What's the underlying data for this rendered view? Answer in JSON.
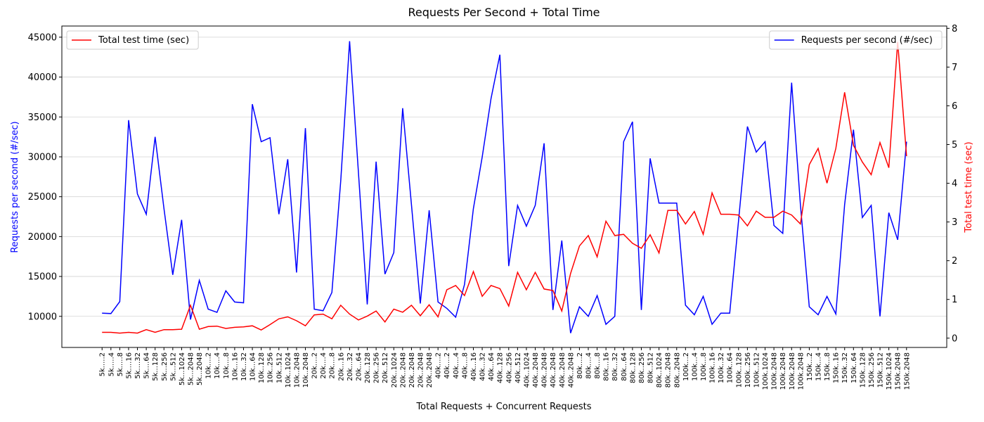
{
  "chart_data": {
    "type": "line",
    "title": "Requests Per Second + Total Time",
    "xlabel": "Total Requests + Concurrent Requests",
    "ylabel": "Requests per second (#/sec)",
    "y2label": "Total test time (sec)",
    "ylabel_color": "#0000ff",
    "y2label_color": "#ff0000",
    "categories": [
      "5k.....2",
      "5k.....4",
      "5k.....8",
      "5k....16",
      "5k....32",
      "5k....64",
      "5k...128",
      "5k...256",
      "5k...512",
      "5k...1024",
      "5k...2048",
      "5k...2048",
      "10k....2",
      "10k....4",
      "10k....8",
      "10k...16",
      "10k...32",
      "10k...64",
      "10k..128",
      "10k..256",
      "10k..512",
      "10k..1024",
      "10k..2048",
      "10k..2048",
      "20k....2",
      "20k....4",
      "20k....8",
      "20k...16",
      "20k...32",
      "20k...64",
      "20k..128",
      "20k..256",
      "20k..512",
      "20k..1024",
      "20k..2048",
      "20k..2048",
      "20k..2048",
      "20k..2048",
      "40k....2",
      "40k....2",
      "40k....4",
      "40k....8",
      "40k...16",
      "40k...32",
      "40k...64",
      "40k..128",
      "40k..256",
      "40k..512",
      "40k..1024",
      "40k..2048",
      "40k..2048",
      "40k..2048",
      "40k..2048",
      "40k..2048",
      "80k....2",
      "80k....4",
      "80k....8",
      "80k...16",
      "80k...32",
      "80k...64",
      "80k..128",
      "80k..256",
      "80k..512",
      "80k..1024",
      "80k..2048",
      "80k..2048",
      "100k...2",
      "100k...4",
      "100k...8",
      "100k..16",
      "100k..32",
      "100k..64",
      "100k..128",
      "100k..256",
      "100k..512",
      "100k.1024",
      "100k.2048",
      "100k.2048",
      "100k.2048",
      "100k.2048",
      "150k...2",
      "150k...4",
      "150k...8",
      "150k..16",
      "150k..32",
      "150k..64",
      "150k..128",
      "150k..256",
      "150k..512",
      "150k.1024",
      "150k.2048",
      "150k.2048"
    ],
    "series": [
      {
        "name": "Requests per second (#/sec)",
        "color": "#0000ff",
        "axis": "y",
        "legend_loc": "upper right",
        "values": [
          10400,
          10350,
          11850,
          34600,
          25350,
          22800,
          32500,
          23500,
          15200,
          22100,
          9600,
          14500,
          10900,
          10500,
          13200,
          11800,
          11700,
          36600,
          31900,
          32400,
          22800,
          29700,
          15500,
          33600,
          10900,
          10700,
          13000,
          27000,
          44500,
          28000,
          11500,
          29400,
          15300,
          18000,
          36100,
          24000,
          11600,
          23300,
          11800,
          11000,
          9900,
          14000,
          23500,
          30000,
          37300,
          42800,
          16300,
          23900,
          21300,
          23900,
          31700,
          10800,
          19500,
          7900,
          11200,
          10000,
          12600,
          9000,
          10000,
          31900,
          34400,
          10800,
          29800,
          24200,
          24200,
          24200,
          11400,
          10200,
          12500,
          9000,
          10400,
          10400,
          22000,
          33800,
          30600,
          31900,
          21400,
          20400,
          39300,
          24000,
          11200,
          10200,
          12500,
          10300,
          24000,
          33400,
          22400,
          23900,
          10000,
          23000,
          19600,
          31900
        ]
      },
      {
        "name": "Total test time (sec)",
        "color": "#ff0000",
        "axis": "y2",
        "legend_loc": "upper left",
        "values": [
          0.15,
          0.15,
          0.13,
          0.15,
          0.13,
          0.22,
          0.15,
          0.22,
          0.22,
          0.23,
          0.85,
          0.23,
          0.3,
          0.31,
          0.25,
          0.28,
          0.29,
          0.32,
          0.21,
          0.35,
          0.5,
          0.55,
          0.45,
          0.32,
          0.6,
          0.62,
          0.5,
          0.85,
          0.62,
          0.47,
          0.57,
          0.7,
          0.42,
          0.75,
          0.67,
          0.85,
          0.58,
          0.86,
          0.55,
          1.25,
          1.36,
          1.1,
          1.72,
          1.08,
          1.36,
          1.28,
          0.83,
          1.7,
          1.25,
          1.7,
          1.27,
          1.23,
          0.7,
          1.67,
          2.38,
          2.65,
          2.1,
          3.02,
          2.65,
          2.68,
          2.45,
          2.32,
          2.67,
          2.2,
          3.3,
          3.3,
          2.95,
          3.27,
          2.68,
          3.75,
          3.2,
          3.2,
          3.18,
          2.9,
          3.28,
          3.12,
          3.12,
          3.28,
          3.18,
          2.95,
          4.48,
          4.9,
          4.0,
          4.9,
          6.35,
          4.98,
          4.55,
          4.22,
          5.05,
          4.4,
          7.65,
          4.7
        ]
      }
    ],
    "ylim": [
      6100,
      46400
    ],
    "yticks": [
      10000,
      15000,
      20000,
      25000,
      30000,
      35000,
      40000,
      45000
    ],
    "y2lim": [
      -0.24,
      8.06
    ],
    "y2ticks": [
      0,
      1,
      2,
      3,
      4,
      5,
      6,
      7,
      8
    ],
    "grid": true
  }
}
